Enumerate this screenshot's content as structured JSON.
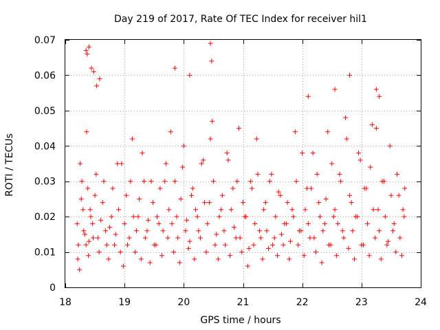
{
  "chart_data": {
    "type": "scatter",
    "title": "Day 219 of 2017, Rate Of TEC Index for receiver hil1",
    "xlabel": "GPS time / hours",
    "ylabel": "ROTI / TECUs",
    "xlim": [
      18,
      24
    ],
    "ylim": [
      0,
      0.07
    ],
    "xticks": [
      18,
      19,
      20,
      21,
      22,
      23,
      24
    ],
    "xtick_labels": [
      "18",
      "19",
      "20",
      "21",
      "22",
      "23",
      "24"
    ],
    "yticks": [
      0,
      0.01,
      0.02,
      0.03,
      0.04,
      0.05,
      0.06,
      0.07
    ],
    "ytick_labels": [
      "0",
      "0.01",
      "0.02",
      "0.03",
      "0.04",
      "0.05",
      "0.06",
      "0.07"
    ],
    "grid": true,
    "marker": "+",
    "color": "#ff0000",
    "series": [
      {
        "name": "ROTI",
        "x": [
          18.2,
          18.22,
          18.25,
          18.28,
          18.3,
          18.33,
          18.36,
          18.38,
          18.4,
          18.43,
          18.46,
          18.5,
          18.55,
          18.6,
          18.65,
          18.7,
          18.75,
          18.8,
          18.85,
          18.9,
          18.95,
          19.0,
          19.05,
          19.1,
          19.15,
          19.2,
          19.25,
          19.3,
          19.35,
          19.4,
          19.45,
          19.5,
          19.55,
          19.6,
          19.65,
          19.7,
          19.75,
          19.8,
          19.85,
          19.9,
          19.95,
          20.0,
          20.05,
          20.1,
          20.15,
          20.2,
          20.25,
          20.3,
          20.35,
          20.4,
          20.45,
          20.5,
          20.55,
          20.6,
          20.65,
          20.7,
          20.75,
          20.8,
          20.85,
          20.9,
          20.95,
          21.0,
          21.05,
          21.1,
          21.15,
          21.2,
          21.25,
          21.3,
          21.35,
          21.4,
          21.45,
          21.5,
          21.55,
          21.6,
          21.65,
          21.7,
          21.75,
          21.8,
          21.85,
          21.9,
          21.95,
          22.0,
          22.05,
          22.1,
          22.15,
          22.2,
          22.25,
          22.3,
          22.35,
          22.4,
          22.45,
          22.5,
          22.55,
          22.6,
          22.65,
          22.7,
          22.75,
          22.8,
          22.85,
          22.9,
          22.95,
          23.0,
          23.05,
          23.1,
          23.15,
          23.2,
          23.25,
          23.3,
          23.35,
          23.4,
          23.45,
          23.5,
          23.55,
          23.6,
          23.65,
          23.7,
          23.73,
          18.21,
          18.24,
          18.27,
          18.31,
          18.35,
          18.39,
          18.42,
          18.47,
          18.52,
          18.57,
          18.63,
          18.68,
          18.73,
          18.78,
          18.83,
          18.88,
          18.93,
          18.98,
          19.03,
          19.08,
          19.13,
          19.18,
          19.23,
          19.28,
          19.33,
          19.38,
          19.43,
          19.48,
          19.53,
          19.58,
          19.63,
          19.68,
          19.73,
          19.78,
          19.83,
          19.88,
          19.93,
          19.98,
          20.03,
          20.08,
          20.13,
          20.18,
          20.23,
          20.28,
          20.33,
          20.38,
          20.43,
          20.48,
          20.53,
          20.58,
          20.63,
          20.68,
          20.73,
          20.78,
          20.83,
          20.88,
          20.93,
          20.98,
          21.03,
          21.08,
          21.13,
          21.18,
          21.23,
          21.28,
          21.33,
          21.38,
          21.43,
          21.48,
          21.53,
          21.58,
          21.63,
          21.68,
          21.73,
          21.78,
          21.83,
          21.88,
          21.93,
          21.98,
          22.03,
          22.08,
          22.13,
          22.18,
          22.23,
          22.28,
          22.33,
          22.38,
          22.43,
          22.48,
          22.53,
          22.58,
          22.63,
          22.68,
          22.73,
          22.78,
          22.83,
          22.88,
          22.93,
          22.98,
          23.03,
          23.08,
          23.13,
          23.18,
          23.23,
          23.28,
          23.33,
          23.38,
          23.43,
          23.48,
          23.53,
          23.58,
          23.63,
          23.68,
          23.72,
          18.35,
          18.37,
          18.4,
          18.44,
          18.48,
          18.53,
          18.58,
          19.85,
          20.1,
          20.45,
          20.47,
          22.1,
          22.55,
          22.8,
          23.25,
          23.3
        ],
        "y": [
          0.018,
          0.012,
          0.035,
          0.03,
          0.022,
          0.015,
          0.044,
          0.028,
          0.013,
          0.02,
          0.018,
          0.026,
          0.014,
          0.019,
          0.03,
          0.012,
          0.017,
          0.028,
          0.015,
          0.022,
          0.035,
          0.018,
          0.012,
          0.03,
          0.02,
          0.016,
          0.025,
          0.038,
          0.014,
          0.019,
          0.03,
          0.012,
          0.02,
          0.028,
          0.016,
          0.035,
          0.022,
          0.018,
          0.03,
          0.014,
          0.025,
          0.04,
          0.019,
          0.013,
          0.028,
          0.022,
          0.016,
          0.035,
          0.024,
          0.018,
          0.042,
          0.03,
          0.015,
          0.02,
          0.026,
          0.012,
          0.036,
          0.022,
          0.017,
          0.03,
          0.014,
          0.024,
          0.02,
          0.011,
          0.028,
          0.018,
          0.032,
          0.014,
          0.022,
          0.016,
          0.03,
          0.012,
          0.02,
          0.027,
          0.015,
          0.018,
          0.024,
          0.013,
          0.02,
          0.03,
          0.016,
          0.038,
          0.022,
          0.018,
          0.028,
          0.014,
          0.032,
          0.02,
          0.016,
          0.025,
          0.012,
          0.035,
          0.022,
          0.018,
          0.03,
          0.014,
          0.042,
          0.026,
          0.016,
          0.02,
          0.038,
          0.012,
          0.028,
          0.018,
          0.034,
          0.022,
          0.045,
          0.016,
          0.03,
          0.02,
          0.013,
          0.026,
          0.018,
          0.032,
          0.014,
          0.022,
          0.028,
          0.008,
          0.005,
          0.025,
          0.016,
          0.012,
          0.009,
          0.022,
          0.014,
          0.032,
          0.01,
          0.024,
          0.016,
          0.008,
          0.02,
          0.012,
          0.035,
          0.01,
          0.006,
          0.026,
          0.014,
          0.042,
          0.01,
          0.02,
          0.008,
          0.03,
          0.016,
          0.007,
          0.024,
          0.012,
          0.018,
          0.009,
          0.03,
          0.014,
          0.044,
          0.01,
          0.02,
          0.007,
          0.034,
          0.016,
          0.011,
          0.026,
          0.008,
          0.02,
          0.014,
          0.036,
          0.01,
          0.024,
          0.047,
          0.012,
          0.008,
          0.022,
          0.016,
          0.038,
          0.009,
          0.028,
          0.014,
          0.045,
          0.01,
          0.02,
          0.006,
          0.03,
          0.012,
          0.042,
          0.016,
          0.008,
          0.024,
          0.011,
          0.032,
          0.014,
          0.009,
          0.026,
          0.012,
          0.018,
          0.008,
          0.022,
          0.044,
          0.012,
          0.016,
          0.009,
          0.028,
          0.014,
          0.038,
          0.01,
          0.024,
          0.007,
          0.018,
          0.044,
          0.012,
          0.02,
          0.009,
          0.032,
          0.016,
          0.048,
          0.011,
          0.024,
          0.008,
          0.02,
          0.036,
          0.012,
          0.028,
          0.009,
          0.046,
          0.014,
          0.022,
          0.008,
          0.03,
          0.012,
          0.04,
          0.016,
          0.01,
          0.026,
          0.009,
          0.02,
          0.067,
          0.066,
          0.068,
          0.062,
          0.061,
          0.057,
          0.059,
          0.062,
          0.06,
          0.069,
          0.064,
          0.054,
          0.056,
          0.06,
          0.056,
          0.054
        ]
      }
    ]
  }
}
